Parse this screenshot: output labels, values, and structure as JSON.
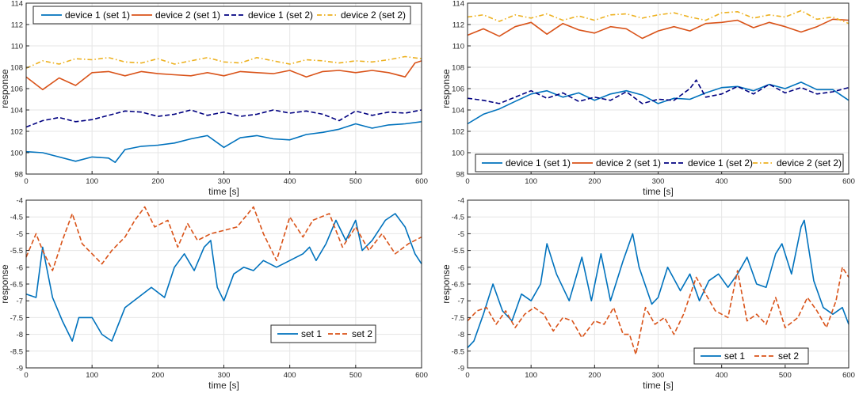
{
  "colors": {
    "blue": "#0072BD",
    "orange": "#D95319",
    "navy": "#000080",
    "gold": "#EDB120"
  },
  "chart_data": [
    {
      "type": "line",
      "xlabel": "time [s]",
      "ylabel": "response",
      "xlim": [
        0,
        600
      ],
      "ylim": [
        98,
        114
      ],
      "xticks": [
        "0",
        "100",
        "200",
        "300",
        "400",
        "500",
        "600"
      ],
      "yticks": [
        "98",
        "100",
        "102",
        "104",
        "106",
        "108",
        "110",
        "112",
        "114"
      ],
      "legend": "top-inside",
      "series": [
        {
          "name": "device 1 (set 1)",
          "color": "#0072BD",
          "dash": "solid",
          "x": [
            0,
            25,
            50,
            75,
            100,
            125,
            135,
            150,
            175,
            200,
            225,
            250,
            275,
            300,
            325,
            350,
            375,
            400,
            425,
            450,
            475,
            500,
            525,
            550,
            575,
            600
          ],
          "y": [
            100.1,
            100.0,
            99.6,
            99.2,
            99.6,
            99.5,
            99.1,
            100.3,
            100.6,
            100.7,
            100.9,
            101.3,
            101.6,
            100.5,
            101.4,
            101.6,
            101.3,
            101.2,
            101.7,
            101.9,
            102.2,
            102.7,
            102.3,
            102.6,
            102.7,
            102.9
          ]
        },
        {
          "name": "device 2 (set 1)",
          "color": "#D95319",
          "dash": "solid",
          "x": [
            0,
            25,
            50,
            75,
            100,
            125,
            150,
            175,
            200,
            225,
            250,
            275,
            300,
            325,
            350,
            375,
            400,
            425,
            450,
            475,
            500,
            525,
            550,
            575,
            590,
            600
          ],
          "y": [
            107.1,
            105.9,
            107.0,
            106.3,
            107.5,
            107.6,
            107.2,
            107.6,
            107.4,
            107.3,
            107.2,
            107.5,
            107.2,
            107.6,
            107.5,
            107.4,
            107.7,
            107.1,
            107.6,
            107.7,
            107.5,
            107.7,
            107.5,
            107.1,
            108.4,
            108.6
          ]
        },
        {
          "name": "device 1 (set 2)",
          "color": "#000080",
          "dash": "dashed",
          "x": [
            0,
            25,
            50,
            75,
            100,
            125,
            150,
            175,
            200,
            225,
            250,
            275,
            300,
            325,
            350,
            375,
            400,
            425,
            450,
            475,
            500,
            525,
            550,
            575,
            600
          ],
          "y": [
            102.4,
            103.0,
            103.3,
            102.9,
            103.1,
            103.5,
            103.9,
            103.8,
            103.4,
            103.6,
            104.0,
            103.5,
            103.8,
            103.4,
            103.6,
            104.0,
            103.7,
            103.9,
            103.6,
            103.0,
            103.9,
            103.5,
            103.8,
            103.7,
            104.0
          ]
        },
        {
          "name": "device 2 (set 2)",
          "color": "#EDB120",
          "dash": "dashdot",
          "x": [
            0,
            25,
            50,
            75,
            100,
            125,
            150,
            175,
            200,
            225,
            250,
            275,
            300,
            325,
            350,
            375,
            400,
            425,
            450,
            475,
            500,
            525,
            550,
            575,
            600
          ],
          "y": [
            107.9,
            108.6,
            108.3,
            108.8,
            108.7,
            108.9,
            108.5,
            108.4,
            108.8,
            108.3,
            108.6,
            108.9,
            108.5,
            108.4,
            108.9,
            108.6,
            108.3,
            108.7,
            108.6,
            108.4,
            108.6,
            108.5,
            108.7,
            109.0,
            108.8
          ]
        }
      ]
    },
    {
      "type": "line",
      "xlabel": "time [s]",
      "ylabel": "response",
      "xlim": [
        0,
        600
      ],
      "ylim": [
        98,
        114
      ],
      "xticks": [
        "0",
        "100",
        "200",
        "300",
        "400",
        "500",
        "600"
      ],
      "yticks": [
        "98",
        "100",
        "102",
        "104",
        "106",
        "108",
        "110",
        "112",
        "114"
      ],
      "legend": "bottom-inside",
      "series": [
        {
          "name": "device 1 (set 1)",
          "color": "#0072BD",
          "dash": "solid",
          "x": [
            0,
            25,
            50,
            75,
            100,
            125,
            150,
            175,
            200,
            225,
            250,
            275,
            300,
            325,
            350,
            375,
            400,
            425,
            450,
            475,
            500,
            525,
            550,
            575,
            600
          ],
          "y": [
            102.7,
            103.6,
            104.1,
            104.8,
            105.5,
            105.8,
            105.2,
            105.6,
            104.9,
            105.5,
            105.8,
            105.4,
            104.6,
            105.1,
            105.0,
            105.6,
            106.1,
            106.2,
            105.8,
            106.4,
            106.0,
            106.6,
            105.9,
            105.9,
            104.9
          ]
        },
        {
          "name": "device 2 (set 1)",
          "color": "#D95319",
          "dash": "solid",
          "x": [
            0,
            25,
            50,
            75,
            100,
            125,
            150,
            175,
            200,
            225,
            250,
            275,
            300,
            325,
            350,
            375,
            400,
            425,
            450,
            475,
            500,
            525,
            550,
            575,
            600
          ],
          "y": [
            111.0,
            111.6,
            110.9,
            111.8,
            112.2,
            111.1,
            112.1,
            111.5,
            111.2,
            111.8,
            111.6,
            110.7,
            111.4,
            111.8,
            111.4,
            112.1,
            112.2,
            112.4,
            111.7,
            112.2,
            111.8,
            111.3,
            111.8,
            112.5,
            112.4
          ]
        },
        {
          "name": "device 1 (set 2)",
          "color": "#000080",
          "dash": "dashed",
          "x": [
            0,
            25,
            50,
            75,
            100,
            125,
            150,
            175,
            200,
            225,
            250,
            275,
            300,
            325,
            350,
            360,
            375,
            400,
            425,
            450,
            475,
            500,
            525,
            550,
            575,
            600
          ],
          "y": [
            105.1,
            104.9,
            104.6,
            105.2,
            105.8,
            105.1,
            105.6,
            104.8,
            105.2,
            104.9,
            105.7,
            104.6,
            105.0,
            104.9,
            106.0,
            106.8,
            105.2,
            105.5,
            106.2,
            105.5,
            106.4,
            105.6,
            106.1,
            105.5,
            105.7,
            106.1
          ]
        },
        {
          "name": "device 2 (set 2)",
          "color": "#EDB120",
          "dash": "dashdot",
          "x": [
            0,
            25,
            50,
            75,
            100,
            125,
            150,
            175,
            200,
            225,
            250,
            275,
            300,
            325,
            350,
            375,
            400,
            425,
            450,
            475,
            500,
            525,
            550,
            575,
            600
          ],
          "y": [
            112.7,
            112.9,
            112.3,
            112.9,
            112.6,
            113.0,
            112.4,
            112.8,
            112.4,
            112.9,
            113.0,
            112.6,
            112.9,
            113.1,
            112.7,
            112.4,
            113.1,
            113.2,
            112.6,
            112.9,
            112.7,
            113.3,
            112.5,
            112.7,
            112.1
          ]
        }
      ]
    },
    {
      "type": "line",
      "xlabel": "time [s]",
      "ylabel": "response",
      "xlim": [
        0,
        600
      ],
      "ylim": [
        -9,
        -4
      ],
      "xticks": [
        "0",
        "100",
        "200",
        "300",
        "400",
        "500",
        "600"
      ],
      "yticks": [
        "-9",
        "-8.5",
        "-8",
        "-7.5",
        "-7",
        "-6.5",
        "-6",
        "-5.5",
        "-5",
        "-4.5",
        "-4"
      ],
      "legend": "bottom-right-inside",
      "series": [
        {
          "name": "set 1",
          "color": "#0072BD",
          "dash": "solid",
          "x": [
            0,
            15,
            25,
            40,
            55,
            70,
            80,
            100,
            115,
            130,
            150,
            170,
            190,
            210,
            225,
            240,
            255,
            270,
            280,
            290,
            300,
            315,
            330,
            345,
            360,
            380,
            400,
            420,
            430,
            440,
            455,
            470,
            485,
            500,
            510,
            525,
            545,
            560,
            575,
            590,
            600
          ],
          "y": [
            -6.8,
            -6.9,
            -5.4,
            -6.9,
            -7.6,
            -8.2,
            -7.5,
            -7.5,
            -8.0,
            -8.2,
            -7.2,
            -6.9,
            -6.6,
            -6.9,
            -6.0,
            -5.6,
            -6.1,
            -5.4,
            -5.2,
            -6.6,
            -7.0,
            -6.2,
            -6.0,
            -6.1,
            -5.8,
            -6.0,
            -5.8,
            -5.6,
            -5.4,
            -5.8,
            -5.3,
            -4.6,
            -5.2,
            -4.6,
            -5.5,
            -5.2,
            -4.6,
            -4.4,
            -4.8,
            -5.6,
            -5.9
          ]
        },
        {
          "name": "set 2",
          "color": "#D95319",
          "dash": "dashed",
          "x": [
            0,
            15,
            25,
            40,
            55,
            70,
            85,
            100,
            115,
            130,
            150,
            165,
            180,
            195,
            215,
            230,
            245,
            260,
            280,
            300,
            320,
            345,
            360,
            380,
            400,
            420,
            435,
            460,
            480,
            500,
            520,
            540,
            560,
            580,
            600
          ],
          "y": [
            -5.7,
            -5.0,
            -5.5,
            -6.1,
            -5.2,
            -4.4,
            -5.3,
            -5.6,
            -5.9,
            -5.5,
            -5.1,
            -4.6,
            -4.2,
            -4.8,
            -4.6,
            -5.4,
            -4.7,
            -5.2,
            -5.0,
            -4.9,
            -4.8,
            -4.2,
            -5.0,
            -5.8,
            -4.5,
            -5.1,
            -4.6,
            -4.4,
            -5.4,
            -4.8,
            -5.5,
            -5.0,
            -5.6,
            -5.3,
            -5.1
          ]
        }
      ]
    },
    {
      "type": "line",
      "xlabel": "time [s]",
      "ylabel": "response",
      "xlim": [
        0,
        600
      ],
      "ylim": [
        -9,
        -4
      ],
      "xticks": [
        "0",
        "100",
        "200",
        "300",
        "400",
        "500",
        "600"
      ],
      "yticks": [
        "-9",
        "-8.5",
        "-8",
        "-7.5",
        "-7",
        "-6.5",
        "-6",
        "-5.5",
        "-5",
        "-4.5",
        "-4"
      ],
      "legend": "bottom-inside",
      "series": [
        {
          "name": "set 1",
          "color": "#0072BD",
          "dash": "solid",
          "x": [
            0,
            10,
            25,
            40,
            55,
            70,
            85,
            100,
            115,
            125,
            140,
            160,
            180,
            195,
            210,
            225,
            245,
            260,
            270,
            290,
            300,
            315,
            335,
            350,
            365,
            380,
            395,
            410,
            425,
            440,
            455,
            470,
            485,
            495,
            510,
            525,
            530,
            545,
            560,
            575,
            590,
            600
          ],
          "y": [
            -8.4,
            -8.2,
            -7.4,
            -6.5,
            -7.3,
            -7.6,
            -6.8,
            -7.0,
            -6.5,
            -5.3,
            -6.2,
            -7.0,
            -5.7,
            -7.0,
            -5.6,
            -7.0,
            -5.8,
            -5.0,
            -6.0,
            -7.1,
            -6.9,
            -6.0,
            -6.7,
            -6.2,
            -7.0,
            -6.4,
            -6.2,
            -6.6,
            -6.2,
            -5.7,
            -6.5,
            -6.6,
            -5.6,
            -5.3,
            -6.2,
            -4.8,
            -4.6,
            -6.4,
            -7.2,
            -7.4,
            -7.2,
            -7.7
          ]
        },
        {
          "name": "set 2",
          "color": "#D95319",
          "dash": "dashed",
          "x": [
            0,
            15,
            30,
            45,
            60,
            75,
            90,
            105,
            120,
            135,
            150,
            165,
            180,
            200,
            215,
            230,
            245,
            255,
            265,
            280,
            295,
            310,
            325,
            340,
            360,
            375,
            390,
            410,
            425,
            440,
            455,
            470,
            485,
            500,
            520,
            535,
            550,
            565,
            580,
            590,
            600
          ],
          "y": [
            -7.6,
            -7.3,
            -7.2,
            -7.7,
            -7.3,
            -7.8,
            -7.4,
            -7.2,
            -7.4,
            -7.9,
            -7.5,
            -7.6,
            -8.1,
            -7.6,
            -7.7,
            -7.2,
            -8.0,
            -8.0,
            -8.6,
            -7.2,
            -7.7,
            -7.5,
            -8.0,
            -7.4,
            -6.3,
            -6.8,
            -7.3,
            -7.5,
            -6.1,
            -7.6,
            -7.4,
            -7.7,
            -6.9,
            -7.8,
            -7.5,
            -6.9,
            -7.3,
            -7.8,
            -7.0,
            -6.0,
            -6.3
          ]
        }
      ]
    }
  ]
}
